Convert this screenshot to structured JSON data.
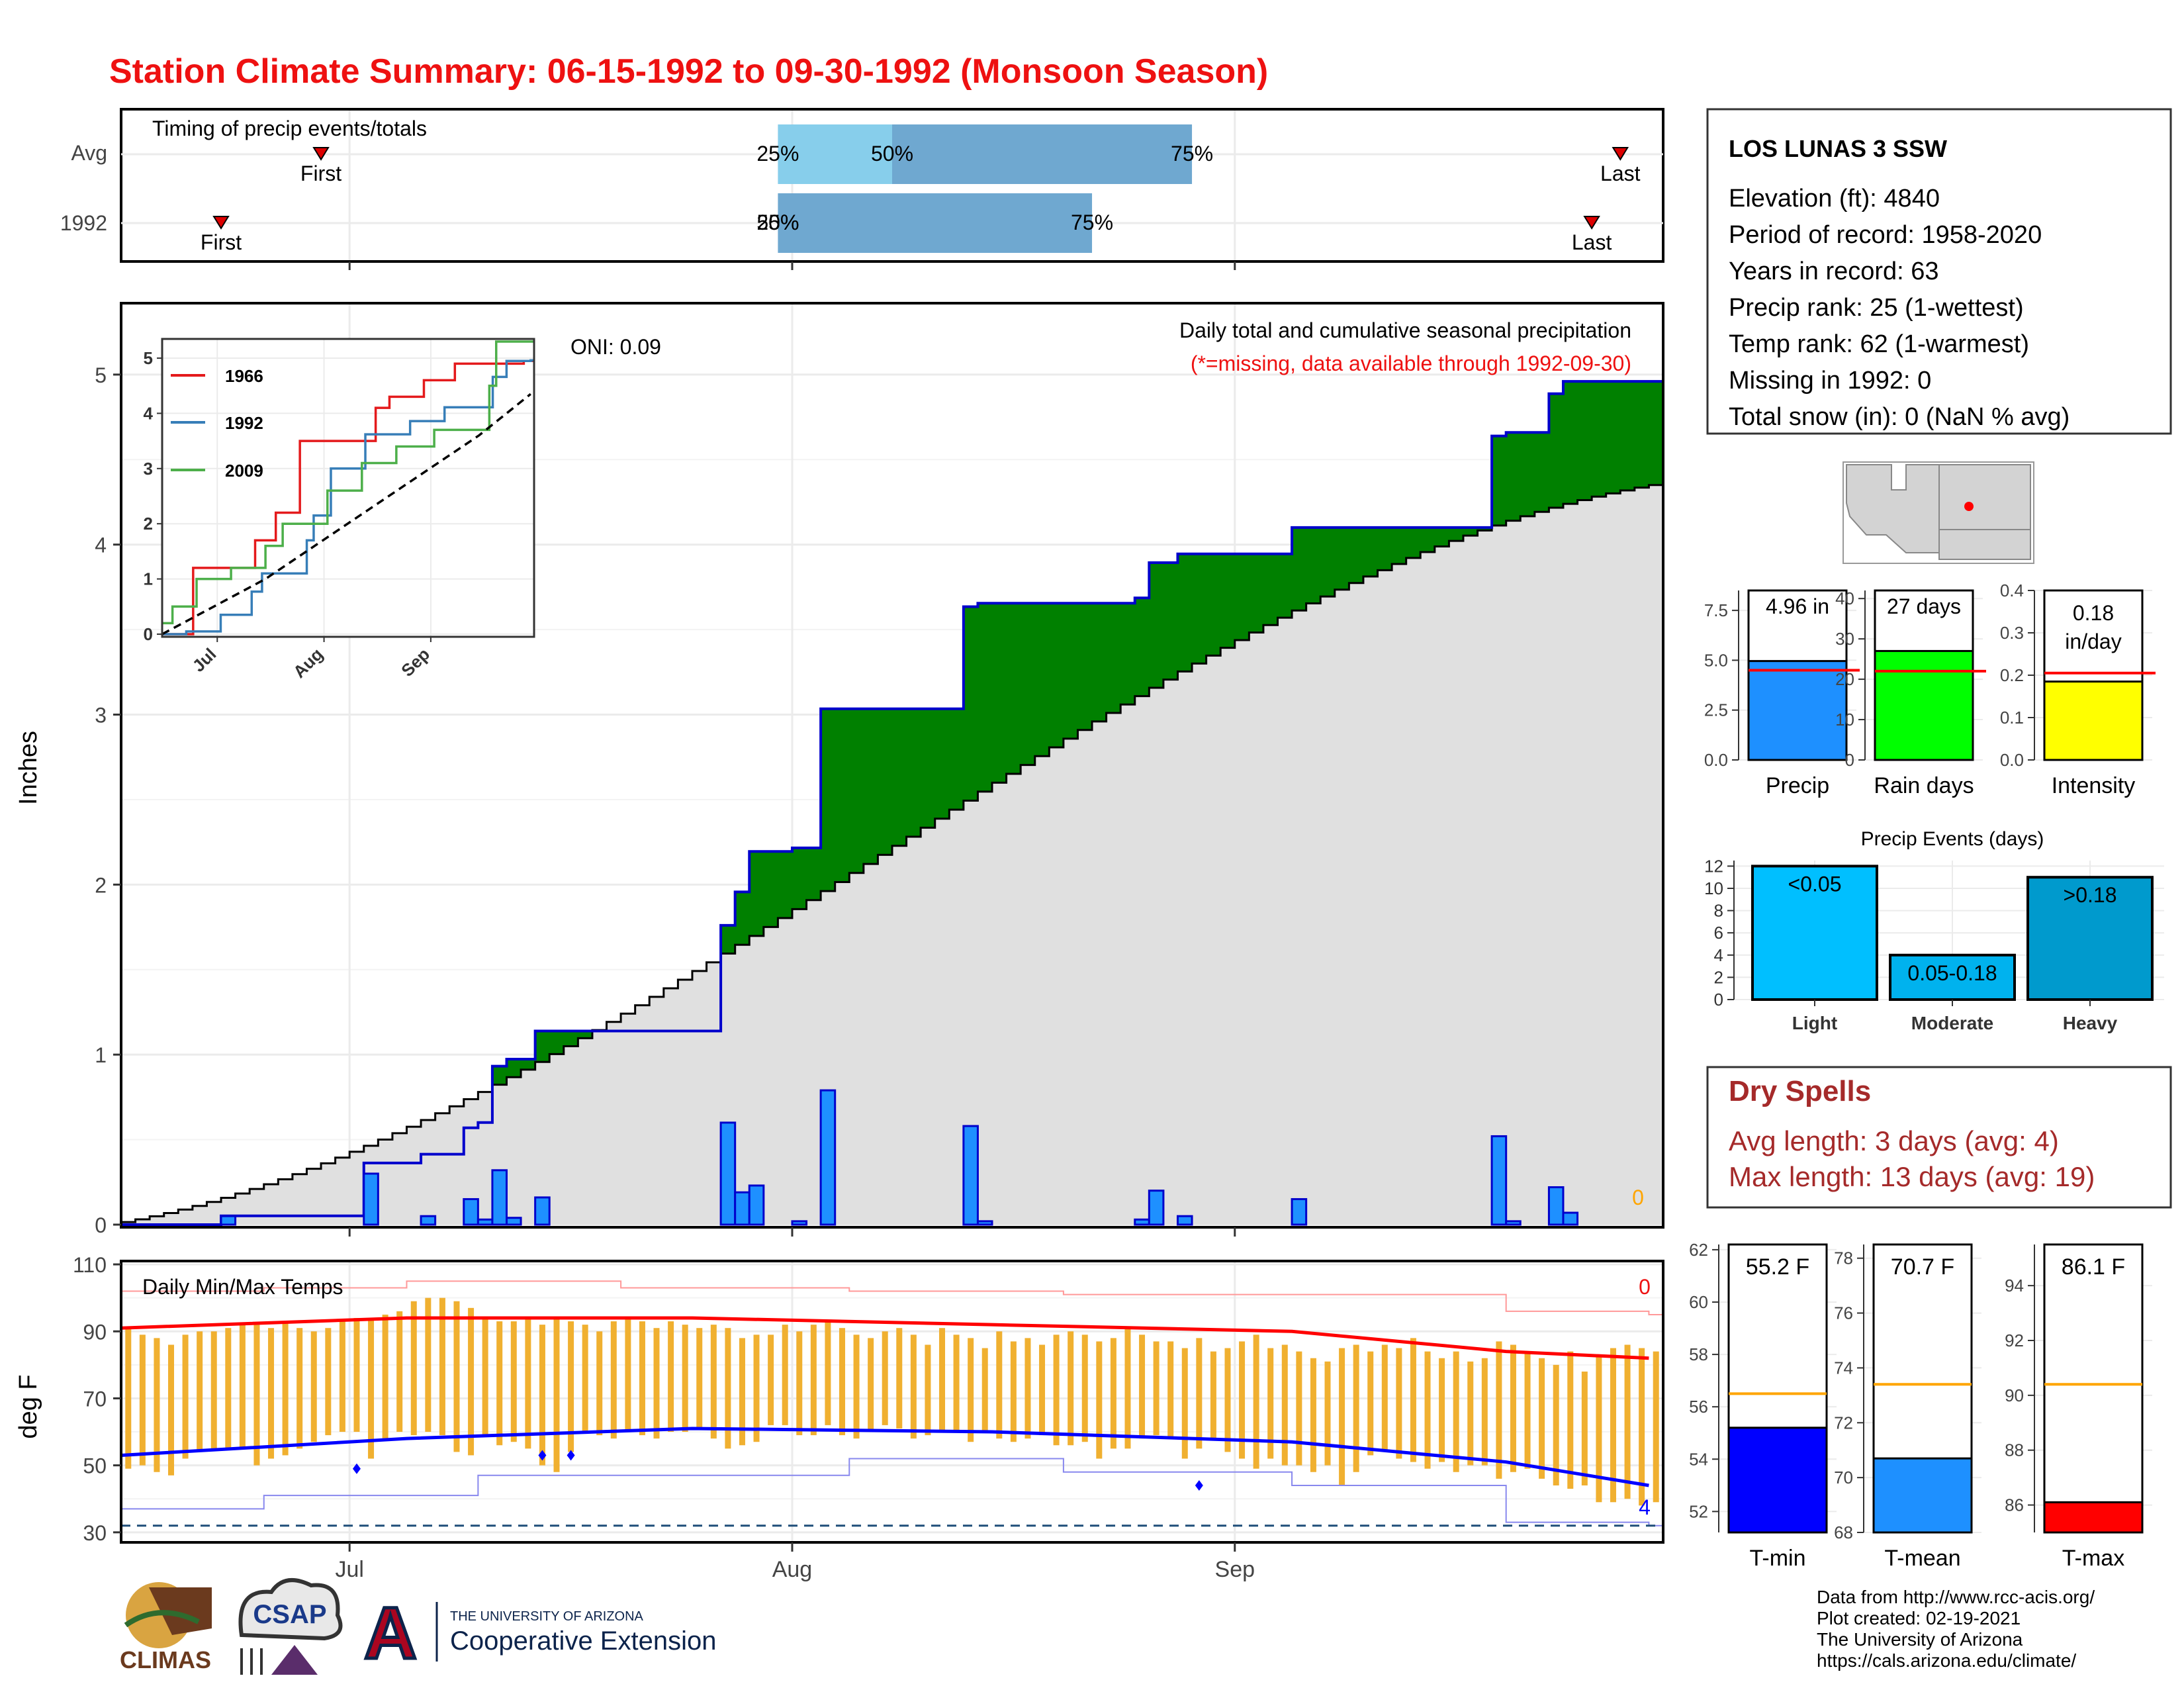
{
  "title": "Station Climate Summary: 06-15-1992 to 09-30-1992 (Monsoon Season)",
  "colors": {
    "title_red": "#ee1111",
    "precip_blue": "#1e90ff",
    "green_fill": "#008000",
    "brown_fill": "#7f5400",
    "gray_fill": "#e0e0e0",
    "orange_bar": "#f0b030",
    "tmax_red": "#ff0000",
    "tmin_blue": "#0000ff",
    "dry_spell_text": "#a52a2a"
  },
  "timing_panel": {
    "label": "Timing of precip events/totals",
    "rows": [
      "Avg",
      "1992"
    ],
    "avg": {
      "first_label": "First",
      "last_label": "Last",
      "first_date": "1992-06-29",
      "last_date": "1992-09-28",
      "p25": "1992-07-31",
      "p50": "1992-08-08",
      "p75": "1992-08-29",
      "p25_label": "25%",
      "p50_label": "50%",
      "p75_label": "75%"
    },
    "y1992": {
      "first_label": "First",
      "last_label": "Last",
      "first_date": "1992-06-22",
      "last_date": "1992-09-26",
      "p25": "1992-07-31",
      "p50": "1992-07-31",
      "p75": "1992-08-22",
      "p25_label": "25%",
      "p50_label": "50%",
      "p75_label": "75%"
    }
  },
  "precip_panel": {
    "title": "Daily total and cumulative seasonal precipitation",
    "subtitle": "(*=missing, data available through 1992-09-30)",
    "oni": "ONI: 0.09",
    "ylabel": "Inches",
    "yticks": [
      "0",
      "1",
      "2",
      "3",
      "4",
      "5"
    ],
    "missing_count": "0",
    "xticks": [
      "Jul",
      "Aug",
      "Sep"
    ],
    "inset": {
      "legend": [
        "1966",
        "1992",
        "2009"
      ],
      "yticks": [
        "0",
        "1",
        "2",
        "3",
        "4",
        "5"
      ],
      "xticks": [
        "Jul",
        "Aug",
        "Sep"
      ]
    }
  },
  "temp_panel": {
    "label": "Daily Min/Max Temps",
    "ylabel": "deg F",
    "yticks": [
      "30",
      "50",
      "70",
      "90",
      "110"
    ],
    "xticks": [
      "Jul",
      "Aug",
      "Sep"
    ],
    "max_count": "0",
    "min_count": "4"
  },
  "station_info": {
    "name": "LOS LUNAS 3 SSW",
    "lines": [
      "Elevation (ft): 4840",
      "Period of record: 1958-2020",
      "Years in record: 63",
      "Precip rank: 25 (1-wettest)",
      "Temp rank: 62 (1-warmest)",
      "Missing in 1992: 0",
      "Total snow (in): 0 (NaN % avg)"
    ]
  },
  "summary_bars": [
    {
      "label": "Precip",
      "value_label": "4.96 in",
      "value": 4.96,
      "avg": 4.5,
      "ymax": 8.5,
      "yticks": [
        "0.0",
        "2.5",
        "5.0",
        "7.5"
      ],
      "ytick_values": [
        0,
        2.5,
        5,
        7.5
      ],
      "color": "#1e90ff"
    },
    {
      "label": "Rain days",
      "value_label": "27 days",
      "value": 27,
      "avg": 22,
      "ymax": 42,
      "yticks": [
        "0",
        "10",
        "20",
        "30",
        "40"
      ],
      "ytick_values": [
        0,
        10,
        20,
        30,
        40
      ],
      "color": "#00ff00"
    },
    {
      "label": "Intensity",
      "value_label": "0.18 in/day",
      "value": 0.185,
      "avg": 0.205,
      "ymax": 0.4,
      "yticks": [
        "0.0",
        "0.1",
        "0.2",
        "0.3",
        "0.4"
      ],
      "ytick_values": [
        0,
        0.1,
        0.2,
        0.3,
        0.4
      ],
      "color": "#ffff00"
    }
  ],
  "events_panel": {
    "title": "Precip Events (days)",
    "yticks": [
      "0",
      "2",
      "4",
      "6",
      "8",
      "10",
      "12"
    ],
    "ymax": 12.5,
    "bars": [
      {
        "category": "Light",
        "range": "<0.05",
        "value": 12,
        "color": "#00bfff"
      },
      {
        "category": "Moderate",
        "range": "0.05-0.18",
        "value": 4,
        "color": "#00b2ee"
      },
      {
        "category": "Heavy",
        "range": ">0.18",
        "value": 11,
        "color": "#009acd"
      }
    ]
  },
  "dry_spells": {
    "title": "Dry Spells",
    "avg_line": "Avg length: 3 days (avg: 4)",
    "max_line": "Max length: 13 days (avg: 19)"
  },
  "temp_bars": [
    {
      "label": "T-min",
      "value_label": "55.2 F",
      "value": 55.2,
      "avg": 56.5,
      "ymin": 51.2,
      "ymax": 62.2,
      "yticks": [
        "52",
        "54",
        "56",
        "58",
        "60",
        "62"
      ],
      "ytick_values": [
        52,
        54,
        56,
        58,
        60,
        62
      ],
      "color": "#0000ff"
    },
    {
      "label": "T-mean",
      "value_label": "70.7 F",
      "value": 70.7,
      "avg": 73.4,
      "ymin": 68.0,
      "ymax": 78.5,
      "yticks": [
        "68",
        "70",
        "72",
        "74",
        "76",
        "78"
      ],
      "ytick_values": [
        68,
        70,
        72,
        74,
        76,
        78
      ],
      "color": "#1e90ff"
    },
    {
      "label": "T-max",
      "value_label": "86.1 F",
      "value": 86.1,
      "avg": 90.4,
      "ymin": 85.0,
      "ymax": 95.5,
      "yticks": [
        "86",
        "88",
        "90",
        "92",
        "94"
      ],
      "ytick_values": [
        86,
        88,
        90,
        92,
        94
      ],
      "color": "#ff0000"
    }
  ],
  "footer": {
    "lines": [
      "Data from http://www.rcc-acis.org/",
      "Plot created: 02-19-2021",
      "The University of Arizona",
      "https://cals.arizona.edu/climate/"
    ],
    "logo_climas": "CLIMAS",
    "logo_csap": "CSAP",
    "logo_ua_small": "THE UNIVERSITY OF ARIZONA",
    "logo_ua_big": "Cooperative Extension",
    "logo_ua_letter": "A"
  },
  "chart_data": [
    {
      "type": "bar",
      "title": "Daily total and cumulative seasonal precipitation",
      "ylabel": "Inches",
      "ylim": [
        0,
        5.4
      ],
      "x_start": "1992-06-15",
      "x_end": "1992-09-30",
      "daily_precip": [
        {
          "date": "1992-06-22",
          "value": 0.05
        },
        {
          "date": "1992-07-02",
          "value": 0.3
        },
        {
          "date": "1992-07-06",
          "value": 0.05
        },
        {
          "date": "1992-07-09",
          "value": 0.15
        },
        {
          "date": "1992-07-10",
          "value": 0.03
        },
        {
          "date": "1992-07-11",
          "value": 0.32
        },
        {
          "date": "1992-07-12",
          "value": 0.04
        },
        {
          "date": "1992-07-14",
          "value": 0.16
        },
        {
          "date": "1992-07-27",
          "value": 0.6
        },
        {
          "date": "1992-07-28",
          "value": 0.19
        },
        {
          "date": "1992-07-29",
          "value": 0.23
        },
        {
          "date": "1992-08-01",
          "value": 0.02
        },
        {
          "date": "1992-08-03",
          "value": 0.79
        },
        {
          "date": "1992-08-13",
          "value": 0.58
        },
        {
          "date": "1992-08-14",
          "value": 0.02
        },
        {
          "date": "1992-08-25",
          "value": 0.03
        },
        {
          "date": "1992-08-26",
          "value": 0.2
        },
        {
          "date": "1992-08-28",
          "value": 0.05
        },
        {
          "date": "1992-09-05",
          "value": 0.15
        },
        {
          "date": "1992-09-19",
          "value": 0.52
        },
        {
          "date": "1992-09-20",
          "value": 0.02
        },
        {
          "date": "1992-09-23",
          "value": 0.22
        },
        {
          "date": "1992-09-24",
          "value": 0.07
        }
      ],
      "cumulative_1992_end": 4.96,
      "cumulative_avg_end": 4.35
    },
    {
      "type": "line",
      "title": "",
      "series": [
        {
          "name": "1966",
          "color": "#e41a1c",
          "x": [
            "1992-06-15",
            "1992-06-22",
            "1992-06-24",
            "1992-07-10",
            "1992-07-12",
            "1992-07-18",
            "1992-07-25",
            "1992-08-06",
            "1992-08-16",
            "1992-08-20",
            "1992-08-30",
            "1992-09-08",
            "1992-09-18",
            "1992-09-28"
          ],
          "values": [
            0,
            0,
            1.2,
            1.2,
            1.7,
            2.2,
            3.5,
            3.5,
            4.1,
            4.3,
            4.6,
            4.9,
            4.9,
            4.95
          ]
        },
        {
          "name": "1992",
          "color": "#377eb8",
          "x": [
            "1992-06-15",
            "1992-06-22",
            "1992-07-02",
            "1992-07-11",
            "1992-07-14",
            "1992-07-27",
            "1992-07-29",
            "1992-08-03",
            "1992-08-13",
            "1992-08-26",
            "1992-09-05",
            "1992-09-19",
            "1992-09-23",
            "1992-09-30"
          ],
          "values": [
            0,
            0.05,
            0.35,
            0.77,
            1.1,
            1.7,
            2.15,
            3.0,
            3.62,
            3.86,
            4.11,
            4.66,
            4.95,
            4.96
          ]
        },
        {
          "name": "2009",
          "color": "#4daf4a",
          "x": [
            "1992-06-15",
            "1992-06-18",
            "1992-06-25",
            "1992-07-05",
            "1992-07-15",
            "1992-07-20",
            "1992-08-02",
            "1992-08-12",
            "1992-08-22",
            "1992-09-02",
            "1992-09-10",
            "1992-09-18",
            "1992-09-20",
            "1992-09-30"
          ],
          "values": [
            0.2,
            0.5,
            1.0,
            1.2,
            1.6,
            2.0,
            2.6,
            3.1,
            3.4,
            3.7,
            3.7,
            4.5,
            5.3,
            5.3
          ]
        },
        {
          "name": "Average",
          "color": "#000000",
          "x": [
            "1992-06-15",
            "1992-07-15",
            "1992-08-15",
            "1992-09-15",
            "1992-09-30"
          ],
          "values": [
            0,
            1.0,
            2.3,
            3.6,
            4.35
          ]
        }
      ],
      "ylim": [
        0,
        5.3
      ]
    },
    {
      "type": "bar",
      "title": "Daily Min/Max Temps",
      "ylabel": "deg F",
      "ylim": [
        27,
        111
      ],
      "x_start": "1992-06-15",
      "x_end": "1992-09-30",
      "daily_max": [
        91,
        89,
        88,
        86,
        89,
        90,
        90,
        91,
        92,
        92,
        91,
        93,
        91,
        90,
        91,
        93,
        94,
        94,
        95,
        96,
        99,
        100,
        100,
        99,
        97,
        94,
        93,
        93,
        94,
        92,
        94,
        93,
        92,
        90,
        93,
        94,
        93,
        91,
        93,
        92,
        91,
        92,
        91,
        88,
        89,
        89,
        92,
        90,
        92,
        93,
        91,
        89,
        88,
        90,
        91,
        89,
        86,
        91,
        89,
        88,
        85,
        90,
        87,
        88,
        86,
        89,
        90,
        89,
        87,
        88,
        91,
        89,
        87,
        87,
        85,
        88,
        84,
        85,
        87,
        89,
        85,
        86,
        84,
        82,
        81,
        85,
        86,
        84,
        86,
        85,
        88,
        84,
        82,
        84,
        81,
        82,
        87,
        86,
        84,
        82,
        80,
        84,
        78,
        83,
        85,
        86,
        85,
        84
      ],
      "daily_min": [
        49,
        50,
        48,
        47,
        52,
        54,
        55,
        55,
        55,
        50,
        52,
        53,
        55,
        57,
        59,
        60,
        60,
        52,
        58,
        60,
        59,
        60,
        59,
        54,
        53,
        59,
        56,
        57,
        55,
        50,
        48,
        54,
        60,
        59,
        58,
        60,
        59,
        58,
        60,
        60,
        61,
        58,
        55,
        56,
        57,
        62,
        62,
        59,
        59,
        62,
        59,
        58,
        60,
        62,
        61,
        58,
        59,
        60,
        60,
        57,
        60,
        58,
        57,
        58,
        59,
        56,
        56,
        57,
        52,
        55,
        55,
        58,
        59,
        58,
        52,
        55,
        58,
        54,
        52,
        49,
        52,
        50,
        50,
        48,
        50,
        44,
        48,
        53,
        54,
        52,
        51,
        49,
        51,
        48,
        50,
        50,
        46,
        48,
        49,
        46,
        44,
        43,
        44,
        39,
        39,
        40,
        38,
        39
      ],
      "normal_max": {
        "x": [
          "1992-06-15",
          "1992-07-05",
          "1992-07-25",
          "1992-08-15",
          "1992-09-05",
          "1992-09-20",
          "1992-09-30"
        ],
        "values": [
          91,
          94,
          94,
          92,
          90,
          84,
          82
        ]
      },
      "normal_min": {
        "x": [
          "1992-06-15",
          "1992-07-05",
          "1992-07-25",
          "1992-08-15",
          "1992-09-05",
          "1992-09-20",
          "1992-09-30"
        ],
        "values": [
          53,
          58,
          61,
          60,
          57,
          51,
          44
        ]
      },
      "record_max": {
        "x": [
          "1992-06-15",
          "1992-06-25",
          "1992-07-05",
          "1992-07-20",
          "1992-08-05",
          "1992-08-20",
          "1992-09-05",
          "1992-09-20",
          "1992-09-30"
        ],
        "values": [
          102,
          103,
          105,
          103,
          102,
          101,
          101,
          96,
          95
        ]
      },
      "record_min": {
        "x": [
          "1992-06-15",
          "1992-06-25",
          "1992-07-10",
          "1992-07-25",
          "1992-08-05",
          "1992-08-20",
          "1992-09-05",
          "1992-09-20",
          "1992-09-30"
        ],
        "values": [
          37,
          41,
          47,
          47,
          52,
          48,
          44,
          33,
          32
        ]
      },
      "threshold_freezing": 32,
      "record_low_days": [
        "1992-07-01",
        "1992-07-14",
        "1992-07-16",
        "1992-08-29"
      ],
      "record_low_values": [
        49,
        53,
        53,
        44
      ]
    }
  ]
}
